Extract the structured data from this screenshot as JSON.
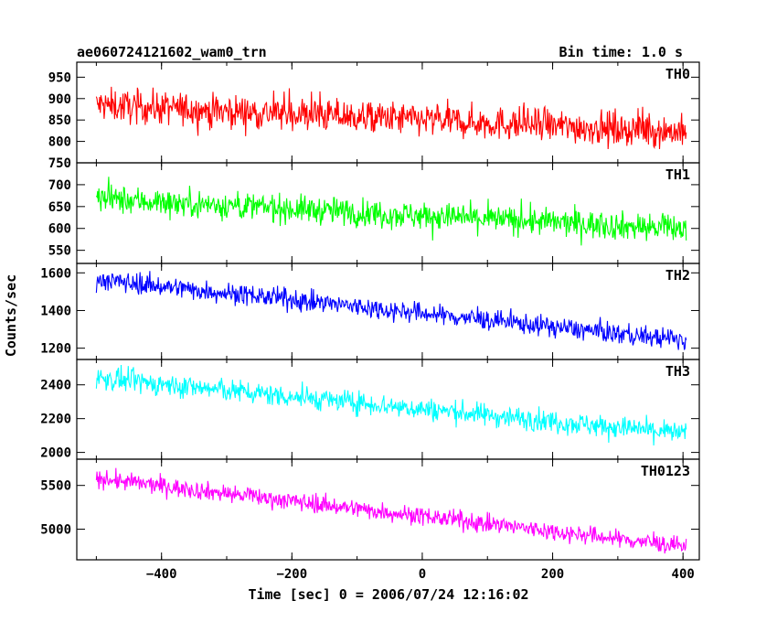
{
  "header": {
    "title": "ae060724121602_wam0_trn",
    "bin_time": "Bin time: 1.0 s"
  },
  "chart_data": {
    "type": "line",
    "title": "ae060724121602_wam0_trn",
    "xlabel": "Time [sec] 0 = 2006/07/24 12:16:02",
    "ylabel": "Counts/sec",
    "xlim": [
      -530,
      425
    ],
    "x_ticks": [
      -400,
      -200,
      0,
      200,
      400
    ],
    "x_tick_labels": [
      "−400",
      "−200",
      "0",
      "200",
      "400"
    ],
    "x_range": [
      -500,
      405
    ],
    "panels": [
      {
        "name": "TH0",
        "color": "#ff0000",
        "ylim": [
          750,
          985
        ],
        "ticks": [
          750,
          800,
          850,
          900,
          950
        ],
        "start": 885,
        "end": 822,
        "noise": 32,
        "spikes": 60
      },
      {
        "name": "TH1",
        "color": "#00ff00",
        "ylim": [
          520,
          750
        ],
        "ticks": [
          550,
          600,
          650,
          700
        ],
        "start": 668,
        "end": 598,
        "noise": 26,
        "spikes": 45
      },
      {
        "name": "TH2",
        "color": "#0000ff",
        "ylim": [
          1140,
          1650
        ],
        "ticks": [
          1200,
          1400,
          1600
        ],
        "start": 1565,
        "end": 1240,
        "noise": 45,
        "spikes": 50
      },
      {
        "name": "TH3",
        "color": "#00ffff",
        "ylim": [
          1960,
          2550
        ],
        "ticks": [
          2000,
          2200,
          2400
        ],
        "start": 2440,
        "end": 2110,
        "noise": 55,
        "spikes": 60
      },
      {
        "name": "TH0123",
        "color": "#ff00ff",
        "ylim": [
          4650,
          5800
        ],
        "ticks": [
          5000,
          5500
        ],
        "start": 5580,
        "end": 4800,
        "noise": 85,
        "spikes": 100
      }
    ]
  }
}
